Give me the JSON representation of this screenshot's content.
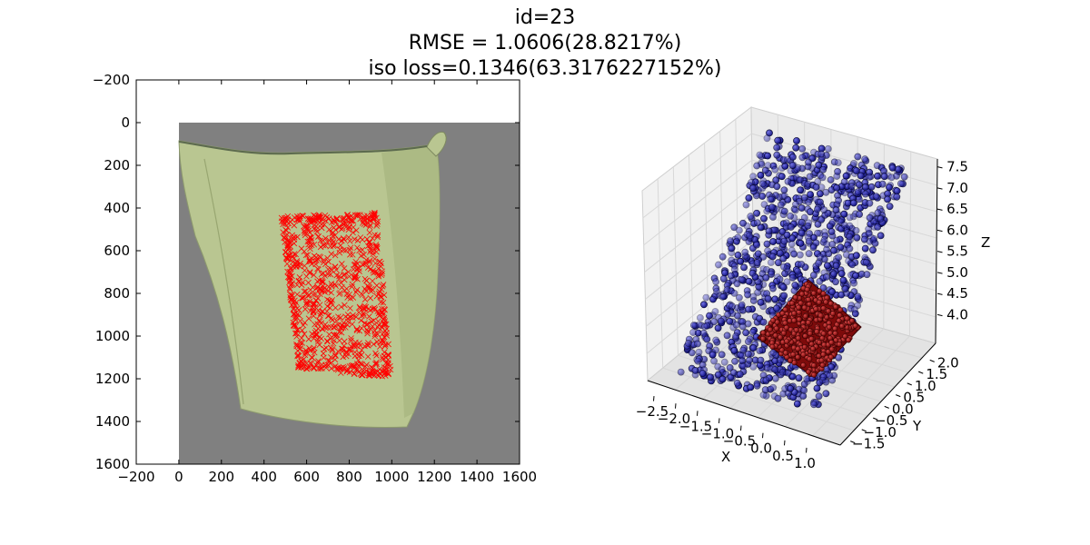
{
  "title_lines": [
    "id=23",
    "RMSE = 1.0606(28.8217%)",
    "iso loss=0.1346(63.3176227152%)"
  ],
  "colors": {
    "cloth": "#b9c691",
    "background_gray": "#808080",
    "marker_red": "#ff0000",
    "blue_points": "#1a1ab0",
    "red_points": "#9b0f0f"
  },
  "chart_data": [
    {
      "type": "image-overlay-scatter",
      "xlim": [
        -200,
        1600
      ],
      "ylim": [
        1600,
        -200
      ],
      "xticks": [
        "-200",
        "0",
        "200",
        "400",
        "600",
        "800",
        "1000",
        "1200",
        "1400",
        "1600"
      ],
      "yticks": [
        "-200",
        "0",
        "200",
        "400",
        "600",
        "800",
        "1000",
        "1200",
        "1400",
        "1600"
      ],
      "image_extent": {
        "x": [
          0,
          1600
        ],
        "y": [
          0,
          1600
        ]
      },
      "marker_region": {
        "corners": [
          [
            480,
            440
          ],
          [
            930,
            420
          ],
          [
            1000,
            1200
          ],
          [
            560,
            1150
          ]
        ],
        "marker": "x",
        "color": "#ff0000"
      }
    },
    {
      "type": "scatter3d",
      "xlabel": "X",
      "ylabel": "Y",
      "zlabel": "Z",
      "xticks": [
        "−2.5",
        "−2.0",
        "−1.5",
        "−1.0",
        "−0.5",
        "0.0",
        "0.5",
        "1.0"
      ],
      "yticks": [
        "−1.5",
        "−1.0",
        "−0.5",
        "0.0",
        "0.5",
        "1.0",
        "1.5",
        "2.0"
      ],
      "zticks": [
        "4.0",
        "4.5",
        "5.0",
        "5.5",
        "6.0",
        "6.5",
        "7.0",
        "7.5"
      ],
      "series": [
        {
          "color": "#1a1ab0"
        },
        {
          "color": "#9b0f0f"
        }
      ]
    }
  ]
}
